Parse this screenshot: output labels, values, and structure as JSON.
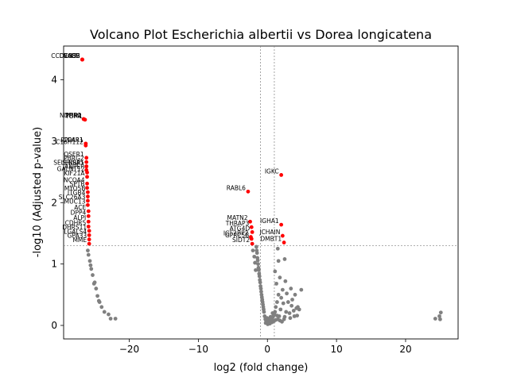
{
  "chart_data": {
    "type": "scatter",
    "title": "Volcano Plot Escherichia albertii vs Dorea longicatena",
    "xlabel": "log2 (fold change)",
    "ylabel": "-log10 (Adjusted p-value)",
    "xlim": [
      -29.5,
      27.6
    ],
    "ylim": [
      -0.22,
      4.55
    ],
    "xticks": [
      -20,
      -10,
      0,
      10,
      20
    ],
    "xtick_labels": [
      "−20",
      "−10",
      "0",
      "10",
      "20"
    ],
    "yticks": [
      0,
      1,
      2,
      3,
      4
    ],
    "ytick_labels": [
      "0",
      "1",
      "2",
      "3",
      "4"
    ],
    "thresholds": {
      "fold_change_lines": [
        -1,
        1
      ],
      "pvalue_line": 1.3
    },
    "colors": {
      "significant": "#ff0000",
      "not_significant": "#808080"
    },
    "grid": false,
    "legend": "none",
    "significant_points": [
      {
        "label": "DEGS2",
        "x": -26.8,
        "y": 4.33
      },
      {
        "label": "CCDC88B",
        "x": -26.8,
        "y": 4.33
      },
      {
        "label": "CFI",
        "x": -26.8,
        "y": 4.33
      },
      {
        "label": "NAGS",
        "x": -26.8,
        "y": 4.33
      },
      {
        "label": "PRR4",
        "x": -26.6,
        "y": 3.36
      },
      {
        "label": "NDFIP2",
        "x": -26.6,
        "y": 3.36
      },
      {
        "label": "TOM1",
        "x": -26.4,
        "y": 3.35
      },
      {
        "label": "CCAR1",
        "x": -26.3,
        "y": 2.96
      },
      {
        "label": "C1orf112",
        "x": -26.3,
        "y": 2.93
      },
      {
        "label": "PPP4R1",
        "x": -26.3,
        "y": 2.96
      },
      {
        "label": "QSER1",
        "x": -26.2,
        "y": 2.73
      },
      {
        "label": "PBRG2",
        "x": -26.2,
        "y": 2.66
      },
      {
        "label": "SELENBP1",
        "x": -26.2,
        "y": 2.59
      },
      {
        "label": "SHISA5",
        "x": -26.2,
        "y": 2.59
      },
      {
        "label": "ANPEP",
        "x": -26.2,
        "y": 2.53
      },
      {
        "label": "GALNT12",
        "x": -26.1,
        "y": 2.49
      },
      {
        "label": "KIF21A",
        "x": -26.1,
        "y": 2.42
      },
      {
        "label": "NCOA4",
        "x": -26.1,
        "y": 2.31
      },
      {
        "label": "SPTB",
        "x": -26.1,
        "y": 2.24
      },
      {
        "label": "MYO5B",
        "x": -26.0,
        "y": 2.17
      },
      {
        "label": "ITGB4",
        "x": -26.0,
        "y": 2.1
      },
      {
        "label": "SLC26A3",
        "x": -26.0,
        "y": 2.03
      },
      {
        "label": "MUC13",
        "x": -26.0,
        "y": 1.96
      },
      {
        "label": "ACE",
        "x": -25.9,
        "y": 1.86
      },
      {
        "label": "DPP4",
        "x": -25.9,
        "y": 1.78
      },
      {
        "label": "ALPI",
        "x": -25.9,
        "y": 1.69
      },
      {
        "label": "CDHR5",
        "x": -25.9,
        "y": 1.61
      },
      {
        "label": "DHRS11",
        "x": -25.8,
        "y": 1.54
      },
      {
        "label": "LGALS4",
        "x": -25.8,
        "y": 1.47
      },
      {
        "label": "GPA33",
        "x": -25.8,
        "y": 1.4
      },
      {
        "label": "MME",
        "x": -25.8,
        "y": 1.33
      },
      {
        "label": "IGKC",
        "x": 2.0,
        "y": 2.45
      },
      {
        "label": "RABL6",
        "x": -2.8,
        "y": 2.18
      },
      {
        "label": "MATN2",
        "x": -2.5,
        "y": 1.69
      },
      {
        "label": "THRAP3",
        "x": -2.3,
        "y": 1.6
      },
      {
        "label": "ATG4D",
        "x": -2.2,
        "y": 1.52
      },
      {
        "label": "IGHA1",
        "x": 2.0,
        "y": 1.64
      },
      {
        "label": "JCHAIN",
        "x": 2.2,
        "y": 1.46
      },
      {
        "label": "IGF2BP2",
        "x": -2.4,
        "y": 1.44
      },
      {
        "label": "GPRC5B",
        "x": -2.3,
        "y": 1.41
      },
      {
        "label": "DMBT1",
        "x": 2.4,
        "y": 1.35
      },
      {
        "label": "SIDT2",
        "x": -2.2,
        "y": 1.33
      }
    ],
    "nonsignificant_points": [
      [
        -26.0,
        1.22
      ],
      [
        -25.9,
        1.15
      ],
      [
        -25.7,
        1.05
      ],
      [
        -25.5,
        0.92
      ],
      [
        -25.3,
        0.82
      ],
      [
        -25.0,
        0.7
      ],
      [
        -24.8,
        0.6
      ],
      [
        -24.6,
        0.48
      ],
      [
        -24.3,
        0.38
      ],
      [
        -24.0,
        0.3
      ],
      [
        -23.6,
        0.22
      ],
      [
        -23.0,
        0.18
      ],
      [
        -22.0,
        0.11
      ],
      [
        -22.7,
        0.11
      ],
      [
        -24.4,
        0.4
      ],
      [
        -25.1,
        0.68
      ],
      [
        -25.6,
        0.98
      ],
      [
        24.3,
        0.11
      ],
      [
        24.9,
        0.15
      ],
      [
        25.1,
        0.21
      ],
      [
        25.0,
        0.1
      ],
      [
        1.5,
        1.25
      ],
      [
        1.6,
        1.05
      ],
      [
        2.5,
        1.08
      ],
      [
        1.1,
        0.88
      ],
      [
        1.8,
        0.78
      ],
      [
        2.6,
        0.72
      ],
      [
        1.3,
        0.68
      ],
      [
        3.4,
        0.6
      ],
      [
        2.2,
        0.58
      ],
      [
        2.8,
        0.52
      ],
      [
        1.6,
        0.5
      ],
      [
        4.0,
        0.5
      ],
      [
        3.6,
        0.42
      ],
      [
        2.0,
        0.45
      ],
      [
        4.9,
        0.58
      ],
      [
        4.4,
        0.3
      ],
      [
        4.2,
        0.28
      ],
      [
        3.8,
        0.24
      ],
      [
        3.5,
        0.32
      ],
      [
        4.6,
        0.26
      ],
      [
        3.0,
        0.38
      ],
      [
        2.3,
        0.36
      ],
      [
        1.4,
        0.38
      ],
      [
        3.2,
        0.2
      ],
      [
        3.9,
        0.15
      ],
      [
        2.7,
        0.22
      ],
      [
        1.9,
        0.26
      ],
      [
        1.2,
        0.3
      ],
      [
        3.3,
        0.12
      ],
      [
        2.5,
        0.14
      ],
      [
        4.3,
        0.16
      ],
      [
        -1.6,
        1.28
      ],
      [
        -1.5,
        1.18
      ],
      [
        -1.4,
        1.06
      ],
      [
        -1.3,
        0.94
      ],
      [
        -1.2,
        0.84
      ],
      [
        -1.1,
        0.74
      ],
      [
        -1.0,
        0.64
      ],
      [
        -0.9,
        0.55
      ],
      [
        -0.8,
        0.46
      ],
      [
        -0.7,
        0.38
      ],
      [
        -0.6,
        0.3
      ],
      [
        -0.5,
        0.22
      ],
      [
        -0.4,
        0.15
      ],
      [
        -1.55,
        1.22
      ],
      [
        -1.35,
        1.0
      ],
      [
        -1.15,
        0.8
      ],
      [
        -0.95,
        0.6
      ],
      [
        -0.75,
        0.42
      ],
      [
        -0.55,
        0.26
      ],
      [
        -1.45,
        1.1
      ],
      [
        -1.25,
        0.9
      ],
      [
        -1.05,
        0.7
      ],
      [
        -0.85,
        0.5
      ],
      [
        -0.65,
        0.34
      ],
      [
        -0.3,
        0.1
      ],
      [
        -0.2,
        0.08
      ],
      [
        -0.1,
        0.06
      ],
      [
        0.0,
        0.05
      ],
      [
        0.1,
        0.04
      ],
      [
        0.2,
        0.05
      ],
      [
        0.3,
        0.06
      ],
      [
        0.4,
        0.08
      ],
      [
        0.5,
        0.1
      ],
      [
        0.6,
        0.12
      ],
      [
        0.7,
        0.1
      ],
      [
        0.8,
        0.14
      ],
      [
        0.9,
        0.16
      ],
      [
        1.0,
        0.18
      ],
      [
        -0.25,
        0.04
      ],
      [
        0.05,
        0.02
      ],
      [
        0.35,
        0.03
      ],
      [
        0.65,
        0.05
      ],
      [
        0.95,
        0.07
      ],
      [
        1.2,
        0.09
      ],
      [
        1.5,
        0.1
      ],
      [
        1.8,
        0.08
      ],
      [
        2.1,
        0.06
      ],
      [
        0.15,
        0.1
      ],
      [
        -0.05,
        0.12
      ],
      [
        0.45,
        0.14
      ],
      [
        0.75,
        0.2
      ],
      [
        1.1,
        0.22
      ],
      [
        1.4,
        0.16
      ],
      [
        1.7,
        0.15
      ],
      [
        2.4,
        0.1
      ],
      [
        -2.1,
        1.22
      ],
      [
        -1.9,
        1.12
      ],
      [
        -1.8,
        1.02
      ],
      [
        -1.7,
        0.9
      ]
    ]
  }
}
